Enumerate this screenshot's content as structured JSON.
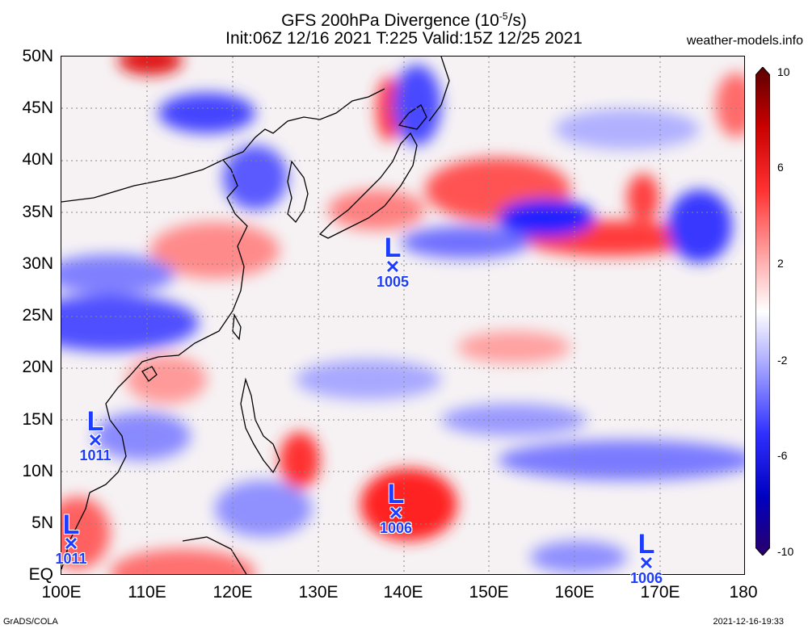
{
  "header": {
    "title": "GFS 200hPa Divergence (10",
    "exponent": "-5",
    "title_end": "/s)",
    "subtitle": "Init:06Z 12/16 2021 T:225 Valid:15Z 12/25 2021",
    "site": "weather-models.info"
  },
  "axes": {
    "lat_labels": [
      "50N",
      "45N",
      "40N",
      "35N",
      "30N",
      "25N",
      "20N",
      "15N",
      "10N",
      "5N",
      "EQ"
    ],
    "lon_labels": [
      "100E",
      "110E",
      "120E",
      "130E",
      "140E",
      "150E",
      "160E",
      "170E",
      "180"
    ]
  },
  "colorbar": {
    "labels": [
      "10",
      "6",
      "2",
      "-2",
      "-6",
      "-10"
    ],
    "colors": [
      "#5a0000",
      "#c80000",
      "#ff3030",
      "#ffb0b0",
      "#ffffff",
      "#b0b0ff",
      "#3030ff",
      "#0000c0",
      "#2a006a"
    ]
  },
  "lows": [
    {
      "name": "low-1005",
      "symbol": "L",
      "pressure": "1005",
      "lon": 139,
      "lat": 29.5
    },
    {
      "name": "low-1011-a",
      "symbol": "L",
      "pressure": "1011",
      "lon": 104,
      "lat": 13
    },
    {
      "name": "low-1006-a",
      "symbol": "L",
      "pressure": "1006",
      "lon": 139,
      "lat": 6
    },
    {
      "name": "low-1011-b",
      "symbol": "L",
      "pressure": "1011",
      "lon": 101,
      "lat": 3
    },
    {
      "name": "low-1006-b",
      "symbol": "L",
      "pressure": "1006",
      "lon": 169,
      "lat": 1
    }
  ],
  "footer": {
    "left": "GrADS/COLA",
    "right": "2021-12-16-19:33"
  }
}
